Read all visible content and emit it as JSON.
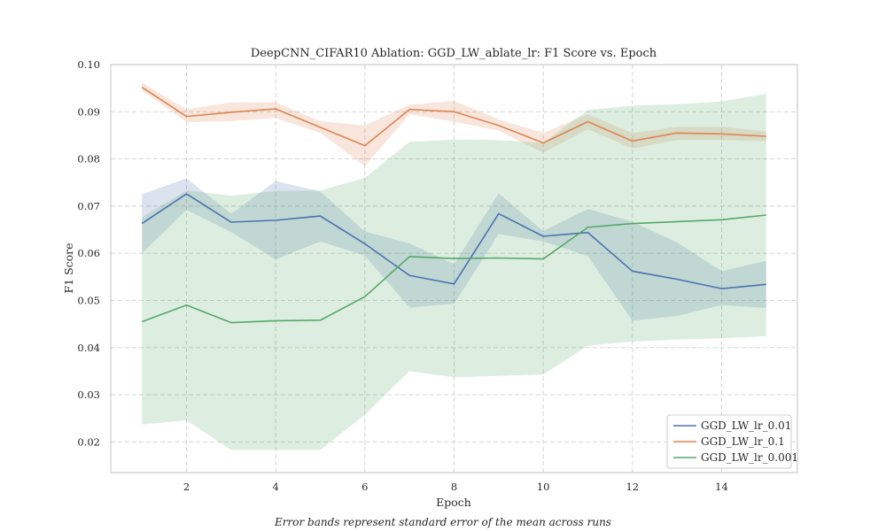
{
  "chart_data": {
    "type": "line",
    "title": "DeepCNN_CIFAR10 Ablation: GGD_LW_ablate_lr: F1 Score vs. Epoch",
    "xlabel": "Epoch",
    "ylabel": "F1 Score",
    "caption": "Error bands represent standard error of the mean across runs",
    "xlim": [
      0.3,
      15.7
    ],
    "ylim": [
      0.0135,
      0.1
    ],
    "x_ticks": [
      2,
      4,
      6,
      8,
      10,
      12,
      14
    ],
    "y_ticks": [
      0.02,
      0.03,
      0.04,
      0.05,
      0.06,
      0.07,
      0.08,
      0.09,
      0.1
    ],
    "y_tick_labels": [
      "0.02",
      "0.03",
      "0.04",
      "0.05",
      "0.06",
      "0.07",
      "0.08",
      "0.09",
      "0.10"
    ],
    "grid": true,
    "legend_position": "lower-right",
    "x": [
      1,
      2,
      3,
      4,
      5,
      6,
      7,
      8,
      9,
      10,
      11,
      12,
      13,
      14,
      15
    ],
    "series": [
      {
        "name": "GGD_LW_lr_0.01",
        "color": "#4c72b0",
        "values": [
          0.0663,
          0.0726,
          0.0666,
          0.067,
          0.0679,
          0.062,
          0.0553,
          0.0535,
          0.0684,
          0.0636,
          0.0644,
          0.0562,
          0.0545,
          0.0525,
          0.0534
        ],
        "lower": [
          0.06,
          0.0692,
          0.0645,
          0.0587,
          0.0625,
          0.0595,
          0.0485,
          0.0493,
          0.0641,
          0.0625,
          0.0594,
          0.0457,
          0.0467,
          0.049,
          0.0484
        ],
        "upper": [
          0.0725,
          0.0759,
          0.0684,
          0.0753,
          0.0731,
          0.0646,
          0.0621,
          0.0577,
          0.0727,
          0.0647,
          0.0694,
          0.0667,
          0.0623,
          0.0562,
          0.0584
        ]
      },
      {
        "name": "GGD_LW_lr_0.1",
        "color": "#dd8452",
        "values": [
          0.0952,
          0.089,
          0.0899,
          0.0906,
          0.0867,
          0.0828,
          0.0905,
          0.09,
          0.0871,
          0.0834,
          0.0879,
          0.0838,
          0.0855,
          0.0853,
          0.0848
        ],
        "lower": [
          0.0945,
          0.0878,
          0.088,
          0.0887,
          0.0855,
          0.0785,
          0.0895,
          0.0879,
          0.086,
          0.0813,
          0.0863,
          0.0822,
          0.084,
          0.084,
          0.0838
        ],
        "upper": [
          0.0962,
          0.0905,
          0.092,
          0.092,
          0.088,
          0.0871,
          0.0915,
          0.0923,
          0.0884,
          0.0855,
          0.0895,
          0.0855,
          0.0868,
          0.0868,
          0.0858
        ]
      },
      {
        "name": "GGD_LW_lr_0.001",
        "color": "#55a868",
        "values": [
          0.0455,
          0.049,
          0.0453,
          0.0457,
          0.0458,
          0.0508,
          0.0593,
          0.0589,
          0.059,
          0.0588,
          0.0655,
          0.0663,
          0.0667,
          0.0671,
          0.0681
        ],
        "lower": [
          0.0237,
          0.0246,
          0.0183,
          0.0183,
          0.0183,
          0.0258,
          0.035,
          0.0337,
          0.034,
          0.0343,
          0.0404,
          0.0413,
          0.0417,
          0.042,
          0.0424
        ],
        "upper": [
          0.0676,
          0.0733,
          0.0722,
          0.0732,
          0.0733,
          0.076,
          0.0836,
          0.0841,
          0.084,
          0.0834,
          0.0904,
          0.0913,
          0.0916,
          0.0922,
          0.0938
        ]
      }
    ]
  }
}
